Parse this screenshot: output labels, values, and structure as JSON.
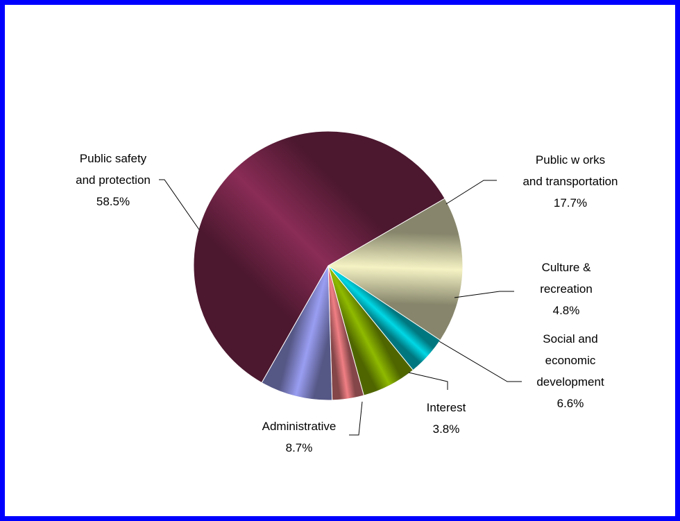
{
  "chart_data": {
    "type": "pie",
    "title": "",
    "slices": [
      {
        "name": "Public works and transportation",
        "label_lines": [
          "Public w orks",
          "and transportation"
        ],
        "value": 17.7,
        "display": "17.7%",
        "color": "#f5f3c4"
      },
      {
        "name": "Culture & recreation",
        "label_lines": [
          "Culture &",
          "recreation"
        ],
        "value": 4.8,
        "display": "4.8%",
        "color": "#00d8e6"
      },
      {
        "name": "Social and economic development",
        "label_lines": [
          "Social and",
          "economic",
          "development"
        ],
        "value": 6.6,
        "display": "6.6%",
        "color": "#8fba00"
      },
      {
        "name": "Interest",
        "label_lines": [
          "Interest"
        ],
        "value": 3.8,
        "display": "3.8%",
        "color": "#f07f84"
      },
      {
        "name": "Administrative",
        "label_lines": [
          "Administrative"
        ],
        "value": 8.7,
        "display": "8.7%",
        "color": "#9a9ef2"
      },
      {
        "name": "Public safety and protection",
        "label_lines": [
          "Public safety",
          "and protection"
        ],
        "value": 58.5,
        "display": "58.5%",
        "color": "#8a2c56"
      }
    ]
  }
}
